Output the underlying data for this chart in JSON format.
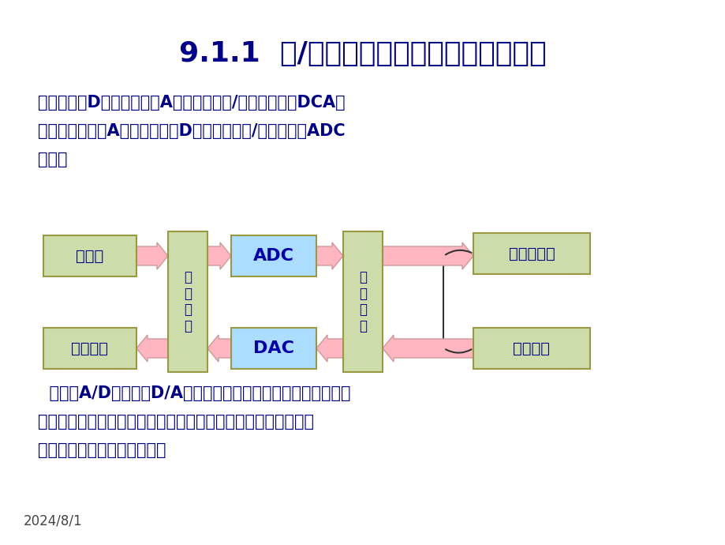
{
  "title": "9.1.1  数/模转换器的基本概念及转换特性",
  "title_color": "#00008B",
  "title_fontsize": 26,
  "bg_color": "#FFFFFF",
  "para1_line1": "能将数字量D转换成模拟量A的装置称为数/模转换器，用DCA简",
  "para1_line2": "称；能将模拟量A转换为数字量D的装置称为模/转换器，用ADC",
  "para1_line3": "简称。",
  "para2_line1": "  显然，A/D转换器和D/A转换器是沟通模拟、数字领域的纽带和",
  "para2_line2": "桥梁，它们不仅是重要的接口电路和核心电路，也是测量和控制",
  "para2_line3": "系统中不可缺少的组成部分。",
  "date_text": "2024/8/1",
  "text_color": "#00008B",
  "box_fill_light": "#CCDDAA",
  "box_fill_blue": "#AADDFF",
  "box_border": "#999944",
  "arrow_color": "#FFB6C1",
  "arrow_edge": "#CC9999"
}
